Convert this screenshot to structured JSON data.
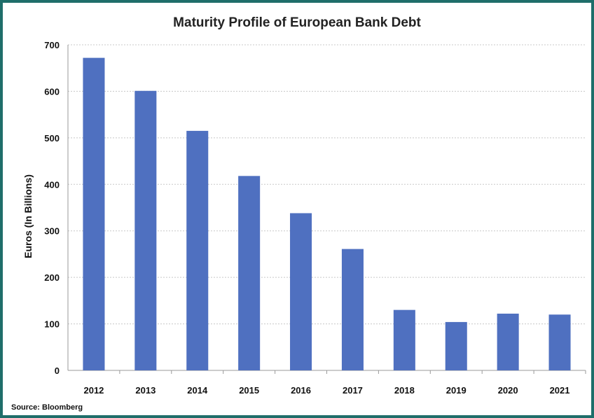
{
  "chart_data": {
    "type": "bar",
    "title": "Maturity Profile of European Bank Debt",
    "ylabel": "Euros (In Billions)",
    "xlabel": "",
    "categories": [
      "2012",
      "2013",
      "2014",
      "2015",
      "2016",
      "2017",
      "2018",
      "2019",
      "2020",
      "2021"
    ],
    "values": [
      672,
      601,
      515,
      418,
      338,
      261,
      130,
      104,
      122,
      120
    ],
    "ylim": [
      0,
      700
    ],
    "yticks": [
      0,
      100,
      200,
      300,
      400,
      500,
      600,
      700
    ],
    "grid": true,
    "bar_color": "#4f70c0",
    "source": "Source: Bloomberg"
  }
}
